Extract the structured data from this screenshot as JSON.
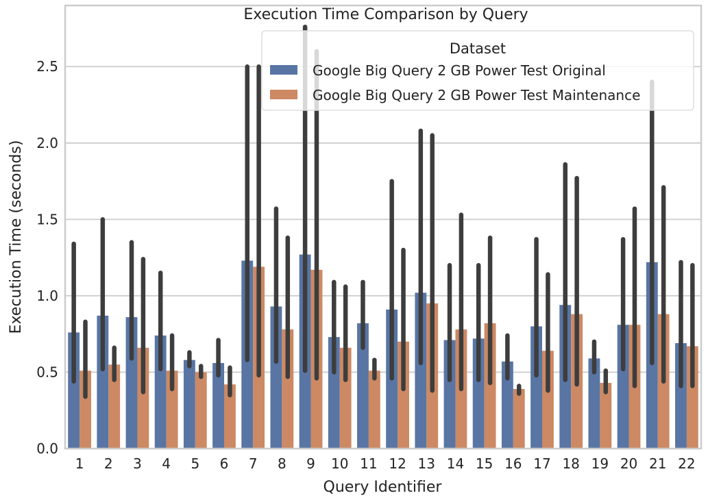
{
  "chart_data": {
    "type": "bar",
    "title": "Execution Time Comparison by Query",
    "xlabel": "Query Identifier",
    "ylabel": "Execution Time (seconds)",
    "ylim": [
      0,
      2.9
    ],
    "yticks": [
      0.0,
      0.5,
      1.0,
      1.5,
      2.0,
      2.5
    ],
    "ytick_labels": [
      "0.0",
      "0.5",
      "1.0",
      "1.5",
      "2.0",
      "2.5"
    ],
    "grid": true,
    "categories": [
      "1",
      "2",
      "3",
      "4",
      "5",
      "6",
      "7",
      "8",
      "9",
      "10",
      "11",
      "12",
      "13",
      "14",
      "15",
      "16",
      "17",
      "18",
      "19",
      "20",
      "21",
      "22"
    ],
    "legend": {
      "title": "Dataset",
      "position": "top-right"
    },
    "series": [
      {
        "name": "Google Big Query 2 GB Power Test Original",
        "color": "#5875a4",
        "values": [
          0.76,
          0.87,
          0.86,
          0.74,
          0.58,
          0.56,
          1.23,
          0.93,
          1.27,
          0.73,
          0.82,
          0.91,
          1.02,
          0.71,
          0.72,
          0.57,
          0.8,
          0.94,
          0.59,
          0.81,
          1.22,
          0.69
        ],
        "error_low": [
          0.44,
          0.52,
          0.59,
          0.52,
          0.54,
          0.48,
          0.58,
          0.57,
          0.51,
          0.5,
          0.66,
          0.46,
          0.56,
          0.45,
          0.45,
          0.46,
          0.48,
          0.45,
          0.5,
          0.52,
          0.56,
          0.41
        ],
        "error_high": [
          1.34,
          1.5,
          1.35,
          1.15,
          0.63,
          0.71,
          2.5,
          1.57,
          2.76,
          1.09,
          1.09,
          1.75,
          2.08,
          1.2,
          1.2,
          0.74,
          1.37,
          1.86,
          0.7,
          1.37,
          2.4,
          1.22
        ]
      },
      {
        "name": "Google Big Query 2 GB Power Test Maintenance",
        "color": "#cc8963",
        "values": [
          0.51,
          0.55,
          0.66,
          0.51,
          0.5,
          0.42,
          1.19,
          0.78,
          1.17,
          0.66,
          0.51,
          0.7,
          0.95,
          0.78,
          0.82,
          0.39,
          0.64,
          0.88,
          0.43,
          0.81,
          0.88,
          0.67
        ],
        "error_low": [
          0.34,
          0.45,
          0.37,
          0.39,
          0.47,
          0.35,
          0.48,
          0.47,
          0.46,
          0.45,
          0.46,
          0.39,
          0.38,
          0.39,
          0.43,
          0.36,
          0.38,
          0.42,
          0.37,
          0.41,
          0.44,
          0.41
        ],
        "error_high": [
          0.83,
          0.66,
          1.24,
          0.74,
          0.54,
          0.53,
          2.5,
          1.38,
          2.6,
          1.06,
          0.58,
          1.3,
          2.05,
          1.53,
          1.38,
          0.41,
          1.14,
          1.77,
          0.51,
          1.57,
          1.71,
          1.2
        ]
      }
    ]
  }
}
